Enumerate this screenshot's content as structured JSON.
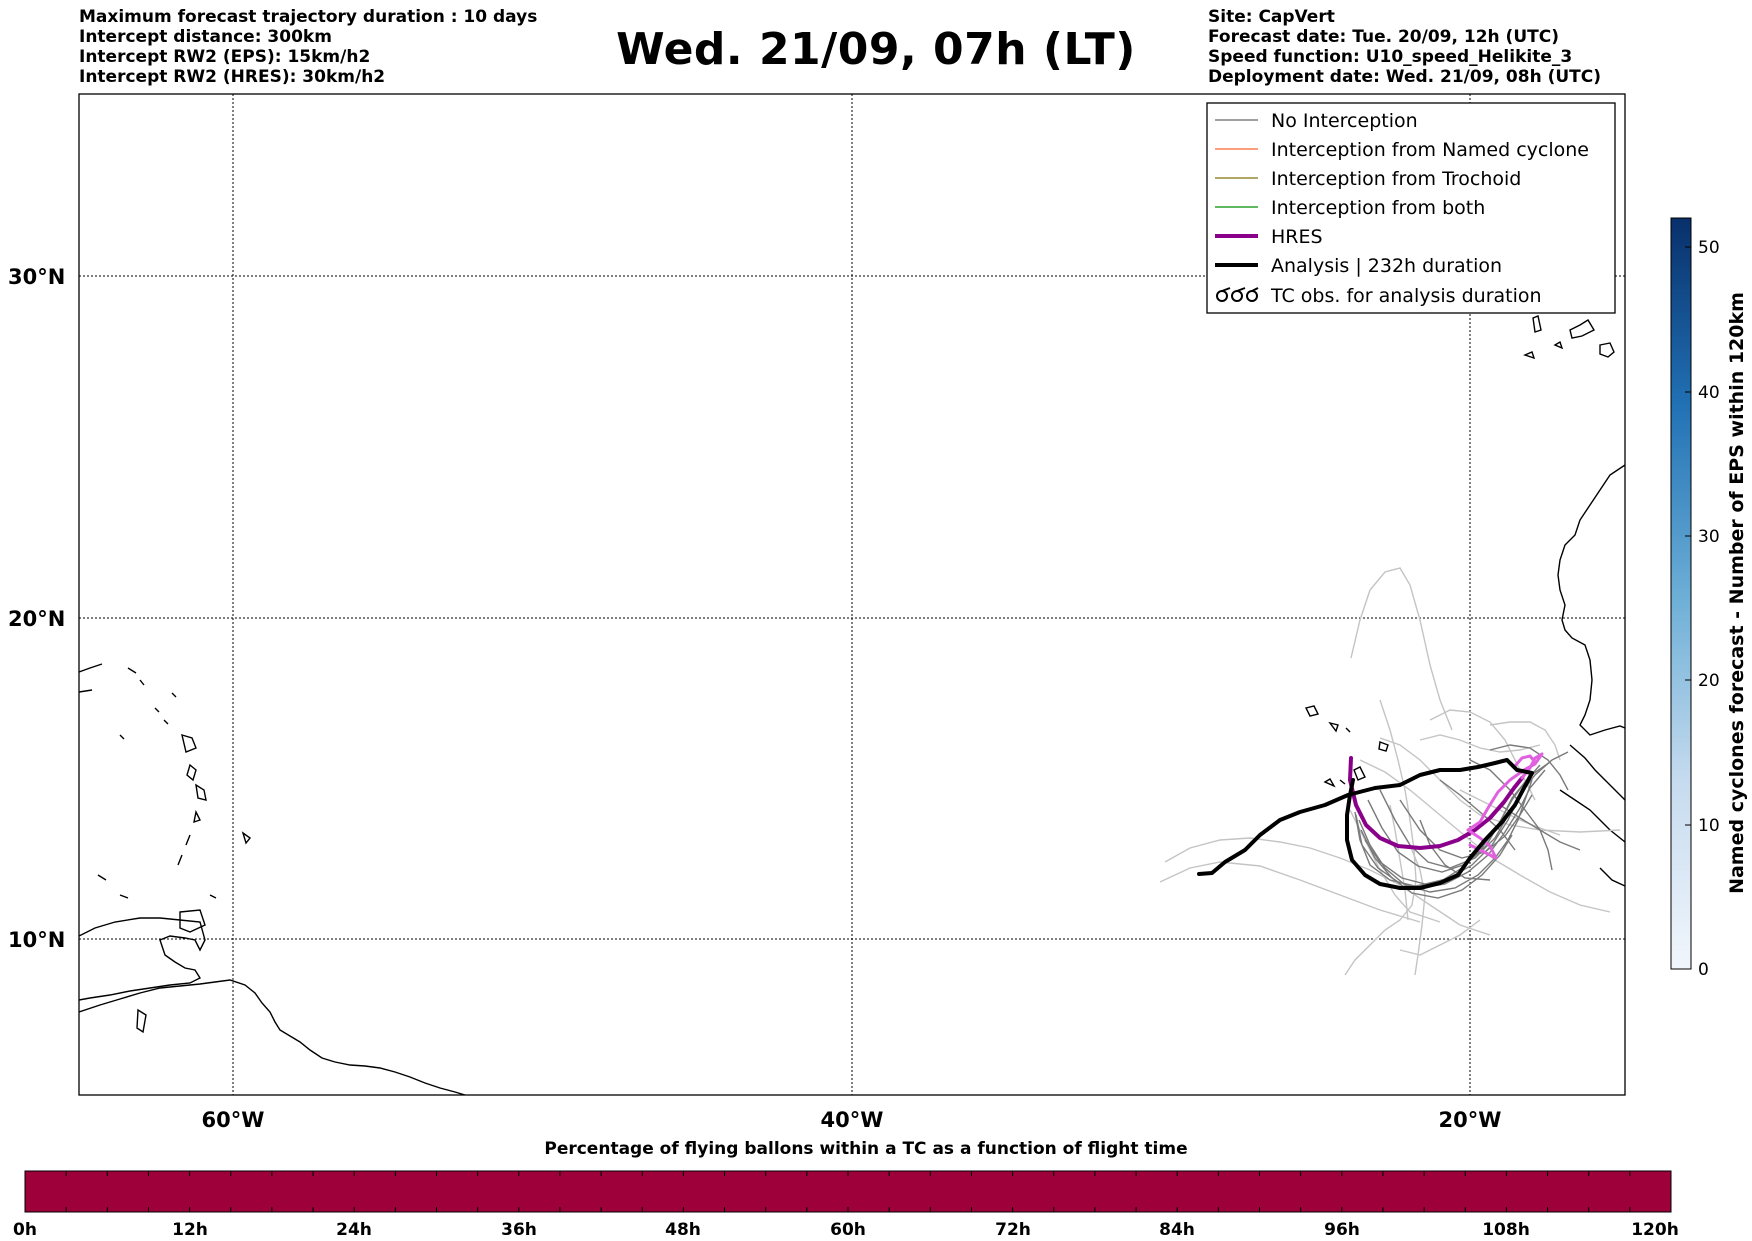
{
  "header": {
    "left_lines": [
      "Maximum forecast trajectory duration : 10 days",
      "Intercept distance: 300km",
      "Intercept RW2 (EPS):  15km/h2",
      "Intercept RW2 (HRES): 30km/h2"
    ],
    "title": "Wed. 21/09, 07h (LT)",
    "right_lines": [
      "Site: CapVert",
      "Forecast date: Tue. 20/09, 12h (UTC)",
      "Speed function: U10_speed_Helikite_3",
      "Deployment date: Wed. 21/09, 08h (UTC)"
    ]
  },
  "map": {
    "lon_labels": [
      "60°W",
      "40°W",
      "20°W"
    ],
    "lat_labels": [
      "30°N",
      "20°N",
      "10°N"
    ],
    "gridline_style": "dotted",
    "coastline_color": "#000000"
  },
  "legend": {
    "entries": [
      {
        "label": "No Interception",
        "color": "#808080",
        "style": "thin-line"
      },
      {
        "label": "Interception from Named cyclone",
        "color": "#ff7f50",
        "style": "thin-line"
      },
      {
        "label": "Interception from Trochoid",
        "color": "#9a8a30",
        "style": "thin-line"
      },
      {
        "label": "Interception from both",
        "color": "#2ca02c",
        "style": "thin-line"
      },
      {
        "label": "HRES",
        "color": "#8b008b",
        "style": "thick-line"
      },
      {
        "label": "Analysis | 232h duration",
        "color": "#000000",
        "style": "thick-line"
      },
      {
        "label": "TC obs. for analysis duration",
        "color": "#000000",
        "style": "cyclone-symbols"
      }
    ]
  },
  "colorbar_right": {
    "label": "Named cyclones forecast - Number of EPS within 120km",
    "ticks": [
      "0",
      "10",
      "20",
      "30",
      "40",
      "50"
    ],
    "range": [
      0,
      52
    ],
    "colors": [
      "#f0f5fb",
      "#0a3d7a"
    ]
  },
  "colorbar_bottom": {
    "title": "Percentage of flying ballons within a TC as a function of flight time",
    "ticks": [
      "0h",
      "12h",
      "24h",
      "36h",
      "48h",
      "60h",
      "72h",
      "84h",
      "96h",
      "108h",
      "120h"
    ],
    "fill_color": "#9e0039",
    "value_percent": 0
  }
}
